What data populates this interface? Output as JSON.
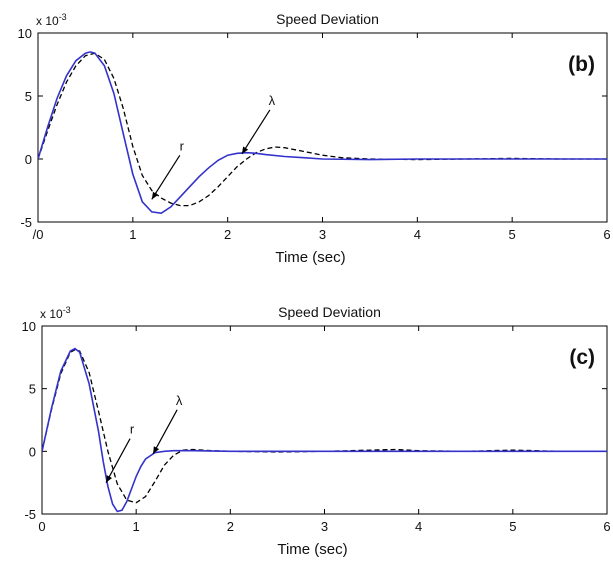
{
  "chart_data": [
    {
      "type": "line",
      "title": "Speed Deviation",
      "panel_label": "(b)",
      "xlabel": "Time (sec)",
      "ylabel": "",
      "y_multiplier": "x 10",
      "y_multiplier_exp": "-3",
      "xlim": [
        0,
        6
      ],
      "ylim": [
        -5,
        10
      ],
      "xticks": [
        "/0",
        "1",
        "2",
        "3",
        "4",
        "5",
        "6"
      ],
      "yticks": [
        "-5",
        "0",
        "5",
        "10"
      ],
      "grid": false,
      "colors": {
        "r": "#3333cc",
        "lambda": "#000000"
      },
      "series": [
        {
          "name": "r",
          "style": "solid",
          "x": [
            0,
            0.1,
            0.2,
            0.3,
            0.4,
            0.5,
            0.55,
            0.6,
            0.7,
            0.8,
            0.9,
            1.0,
            1.1,
            1.2,
            1.3,
            1.4,
            1.5,
            1.6,
            1.7,
            1.8,
            1.9,
            2.0,
            2.1,
            2.2,
            2.3,
            2.4,
            2.6,
            2.8,
            3.0,
            3.5,
            4.0,
            4.5,
            5.0,
            5.5,
            6.0
          ],
          "y": [
            0,
            2.5,
            4.8,
            6.6,
            7.8,
            8.4,
            8.5,
            8.4,
            7.4,
            5.2,
            2.0,
            -1.2,
            -3.4,
            -4.2,
            -4.3,
            -3.8,
            -3.0,
            -2.2,
            -1.4,
            -0.7,
            -0.1,
            0.3,
            0.45,
            0.5,
            0.45,
            0.35,
            0.2,
            0.1,
            0.0,
            -0.05,
            0.0,
            0.0,
            0.0,
            0.0,
            0.0
          ]
        },
        {
          "name": "λ",
          "style": "dashed",
          "x": [
            0,
            0.1,
            0.2,
            0.3,
            0.4,
            0.5,
            0.6,
            0.7,
            0.8,
            0.9,
            1.0,
            1.1,
            1.2,
            1.3,
            1.4,
            1.5,
            1.6,
            1.7,
            1.8,
            1.9,
            2.0,
            2.1,
            2.2,
            2.3,
            2.4,
            2.5,
            2.6,
            2.8,
            3.0,
            3.2,
            3.5,
            4.0,
            4.5,
            5.0,
            5.5,
            6.0
          ],
          "y": [
            0,
            2.2,
            4.3,
            6.1,
            7.4,
            8.2,
            8.4,
            7.9,
            6.4,
            4.0,
            1.0,
            -1.3,
            -2.5,
            -3.1,
            -3.5,
            -3.7,
            -3.7,
            -3.4,
            -2.9,
            -2.2,
            -1.4,
            -0.6,
            0.0,
            0.5,
            0.8,
            0.95,
            0.9,
            0.6,
            0.3,
            0.1,
            0.0,
            -0.05,
            0.0,
            0.05,
            0.0,
            0.0
          ]
        }
      ],
      "annotations": [
        {
          "text": "r",
          "points_to": [
            1.2,
            -3.2
          ]
        },
        {
          "text": "λ",
          "points_to": [
            2.15,
            0.4
          ]
        }
      ]
    },
    {
      "type": "line",
      "title": "Speed Deviation",
      "panel_label": "(c)",
      "xlabel": "Time (sec)",
      "ylabel": "",
      "y_multiplier": "x 10",
      "y_multiplier_exp": "-3",
      "xlim": [
        0,
        6
      ],
      "ylim": [
        -5,
        10
      ],
      "xticks": [
        "0",
        "1",
        "2",
        "3",
        "4",
        "5",
        "6"
      ],
      "yticks": [
        "-5",
        "0",
        "5",
        "10"
      ],
      "grid": false,
      "colors": {
        "r": "#3333cc",
        "lambda": "#000000"
      },
      "series": [
        {
          "name": "r",
          "style": "solid",
          "x": [
            0,
            0.1,
            0.2,
            0.3,
            0.35,
            0.4,
            0.5,
            0.6,
            0.65,
            0.7,
            0.75,
            0.8,
            0.85,
            0.9,
            0.95,
            1.0,
            1.05,
            1.1,
            1.2,
            1.3,
            1.4,
            1.6,
            2.0,
            2.5,
            3.0,
            3.5,
            4.0,
            4.5,
            5.0,
            5.5,
            6.0
          ],
          "y": [
            0,
            3.4,
            6.4,
            8.0,
            8.2,
            7.9,
            5.4,
            1.6,
            -0.8,
            -2.8,
            -4.2,
            -4.8,
            -4.7,
            -4.0,
            -3.0,
            -2.0,
            -1.2,
            -0.6,
            -0.1,
            0.0,
            0.05,
            0.05,
            0.0,
            0.0,
            0.0,
            0.0,
            0.0,
            0.0,
            0.0,
            0.0,
            0.0
          ]
        },
        {
          "name": "λ",
          "style": "dashed",
          "x": [
            0,
            0.1,
            0.2,
            0.3,
            0.35,
            0.4,
            0.5,
            0.6,
            0.7,
            0.8,
            0.9,
            1.0,
            1.1,
            1.2,
            1.3,
            1.4,
            1.5,
            1.6,
            1.8,
            2.0,
            2.5,
            3.0,
            3.5,
            3.75,
            4.0,
            4.5,
            5.0,
            5.5,
            6.0
          ],
          "y": [
            0,
            3.3,
            6.2,
            7.9,
            8.1,
            8.0,
            6.3,
            3.2,
            0.0,
            -2.6,
            -3.9,
            -4.1,
            -3.6,
            -2.4,
            -1.1,
            -0.3,
            0.1,
            0.15,
            0.05,
            0.0,
            -0.05,
            0.0,
            0.1,
            0.15,
            0.05,
            0.0,
            0.1,
            0.0,
            0.0
          ]
        }
      ],
      "annotations": [
        {
          "text": "r",
          "points_to": [
            0.68,
            -2.5
          ]
        },
        {
          "text": "λ",
          "points_to": [
            1.18,
            -0.2
          ]
        }
      ]
    }
  ]
}
